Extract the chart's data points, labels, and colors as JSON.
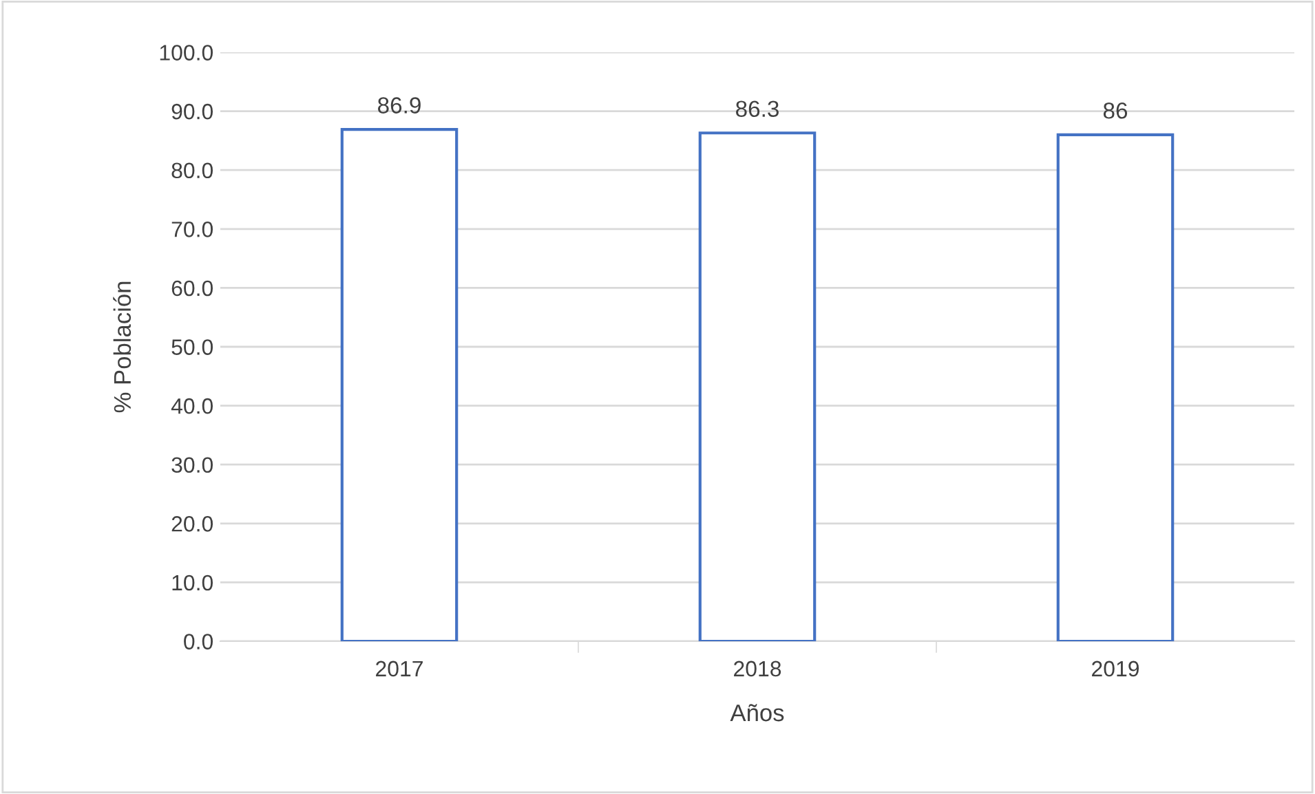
{
  "chart_data": {
    "type": "bar",
    "xlabel": "Años",
    "ylabel": "% Población",
    "categories": [
      "2017",
      "2018",
      "2019"
    ],
    "values": [
      86.9,
      86.3,
      86
    ],
    "color": "#4472c4",
    "data_labels": true,
    "ylim": [
      0,
      100
    ],
    "yticks": [
      {
        "value": 0,
        "label": "0.0"
      },
      {
        "value": 10,
        "label": "10.0"
      },
      {
        "value": 20,
        "label": "20.0"
      },
      {
        "value": 30,
        "label": "30.0"
      },
      {
        "value": 40,
        "label": "40.0"
      },
      {
        "value": 50,
        "label": "50.0"
      },
      {
        "value": 60,
        "label": "60.0"
      },
      {
        "value": 70,
        "label": "70.0"
      },
      {
        "value": 80,
        "label": "80.0"
      },
      {
        "value": 90,
        "label": "90.0"
      },
      {
        "value": 100,
        "label": "100.0"
      }
    ],
    "grid": "y"
  }
}
